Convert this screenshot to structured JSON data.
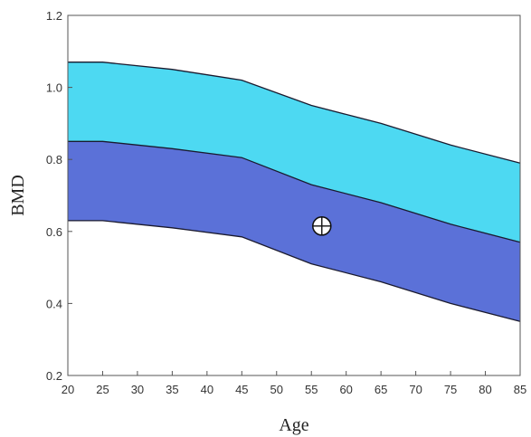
{
  "chart_data": {
    "type": "area",
    "xlabel": "Age",
    "ylabel": "BMD",
    "xlim": [
      20,
      85
    ],
    "ylim": [
      0.2,
      1.2
    ],
    "x_ticks": [
      "20",
      "25",
      "30",
      "35",
      "40",
      "45",
      "50",
      "55",
      "60",
      "65",
      "70",
      "75",
      "80",
      "85"
    ],
    "y_ticks": [
      "0.2",
      "0.4",
      "0.6",
      "0.8",
      "1.0",
      "1.2"
    ],
    "grid": false,
    "x": [
      20,
      25,
      35,
      45,
      55,
      65,
      75,
      85
    ],
    "series": [
      {
        "values": [
          0.63,
          0.63,
          0.61,
          0.585,
          0.51,
          0.46,
          0.4,
          0.35
        ]
      },
      {
        "values": [
          0.85,
          0.85,
          0.83,
          0.805,
          0.73,
          0.68,
          0.62,
          0.57
        ]
      },
      {
        "values": [
          1.07,
          1.07,
          1.05,
          1.02,
          0.95,
          0.9,
          0.84,
          0.79
        ]
      }
    ],
    "band_colors": [
      "#5b71d8",
      "#4dd9f2"
    ],
    "edge_color": "#1a1a2e",
    "marker": {
      "x": 56.5,
      "y": 0.615
    }
  }
}
